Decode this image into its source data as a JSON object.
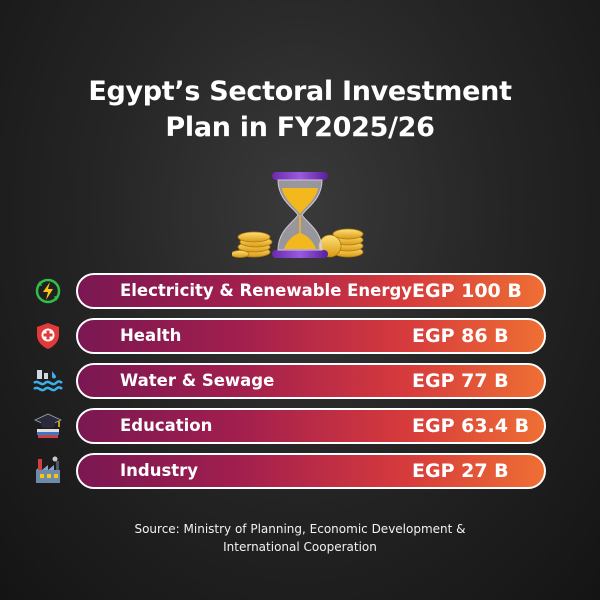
{
  "title_line1": "Egypt’s Sectoral Investment",
  "title_line2": "Plan in FY2025/26",
  "source_line1": "Source: Ministry of Planning, Economic Development &",
  "source_line2": "International Cooperation",
  "colors": {
    "gradient_start": "#7a1752",
    "gradient_end": "#ee6f34",
    "border": "#ffffff",
    "background": "#1a1a1a"
  },
  "chart_data": {
    "type": "table",
    "title": "Egypt’s Sectoral Investment Plan in FY2025/26",
    "rows": [
      {
        "sector": "Electricity & Renewable Energy",
        "value_label": "EGP 100 B",
        "value": 100,
        "icon": "lightning-icon"
      },
      {
        "sector": "Health",
        "value_label": "EGP 86 B",
        "value": 86,
        "icon": "health-shield-icon"
      },
      {
        "sector": "Water & Sewage",
        "value_label": "EGP 77 B",
        "value": 77,
        "icon": "water-icon"
      },
      {
        "sector": "Education",
        "value_label": "EGP 63.4 B",
        "value": 63.4,
        "icon": "graduation-cap-icon"
      },
      {
        "sector": "Industry",
        "value_label": "EGP 27 B",
        "value": 27,
        "icon": "factory-icon"
      }
    ],
    "unit": "EGP billion"
  }
}
